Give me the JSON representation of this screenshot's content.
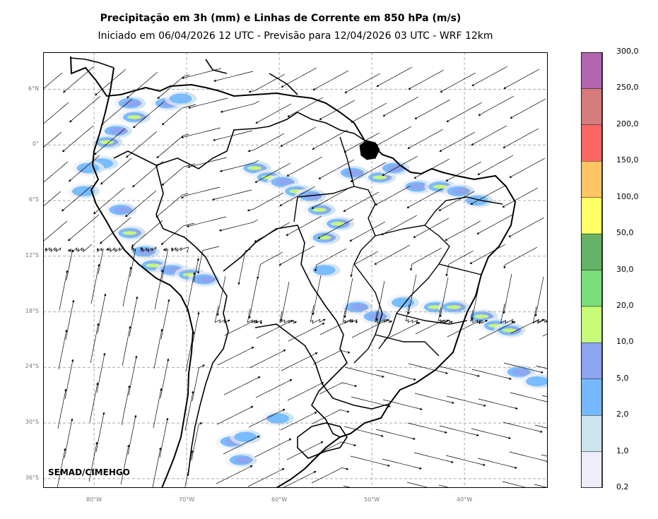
{
  "title": {
    "line1": "Precipitação em 3h (mm) e Linhas de Corrente em 850 hPa (m/s)",
    "line2": "Iniciado em 06/04/2026 12 UTC - Previsão para 12/04/2026 03 UTC - WRF 12km"
  },
  "credit": "SEMAD/CIMEHGO",
  "map": {
    "lon_range": [
      -85.5,
      -31
    ],
    "lat_range": [
      -37,
      10
    ],
    "lat_ticks": [
      {
        "lat": 6,
        "label": "6°N"
      },
      {
        "lat": 0,
        "label": "0°"
      },
      {
        "lat": -6,
        "label": "6°S"
      },
      {
        "lat": -12,
        "label": "12°S"
      },
      {
        "lat": -18,
        "label": "18°S"
      },
      {
        "lat": -24,
        "label": "24°S"
      },
      {
        "lat": -30,
        "label": "30°S"
      },
      {
        "lat": -36,
        "label": "36°S"
      }
    ],
    "lon_ticks": [
      {
        "lon": -80,
        "label": "80°W"
      },
      {
        "lon": -70,
        "label": "70°W"
      },
      {
        "lon": -60,
        "label": "60°W"
      },
      {
        "lon": -50,
        "label": "50°W"
      },
      {
        "lon": -40,
        "label": "40°W"
      }
    ],
    "grid": true,
    "grid_color": "#aaaaaa"
  },
  "colorbar": {
    "labels": [
      "0,2",
      "1,0",
      "2,0",
      "5,0",
      "10,0",
      "20,0",
      "30,0",
      "50,0",
      "100,0",
      "150,0",
      "200,0",
      "250,0",
      "300,0"
    ],
    "colors": [
      "#eeeefb",
      "#cde4ee",
      "#74b9ff",
      "#8da4ee",
      "#c6fb79",
      "#7bdd7b",
      "#66b266",
      "#ffff66",
      "#ffc466",
      "#ff6666",
      "#d57b7b",
      "#b266b2"
    ]
  },
  "precip_cells": [
    {
      "lon": -76.0,
      "lat": 4.5,
      "level": 3
    },
    {
      "lon": -75.5,
      "lat": 3.0,
      "level": 4
    },
    {
      "lon": -77.5,
      "lat": 1.5,
      "level": 3
    },
    {
      "lon": -78.5,
      "lat": 0.3,
      "level": 4
    },
    {
      "lon": -79.0,
      "lat": -2.0,
      "level": 2
    },
    {
      "lon": -72.0,
      "lat": 4.5,
      "level": 3
    },
    {
      "lon": -70.5,
      "lat": 5.0,
      "level": 2
    },
    {
      "lon": -62.5,
      "lat": -2.5,
      "level": 4
    },
    {
      "lon": -61.0,
      "lat": -3.5,
      "level": 5
    },
    {
      "lon": -59.5,
      "lat": -4.0,
      "level": 3
    },
    {
      "lon": -58.0,
      "lat": -5.0,
      "level": 5
    },
    {
      "lon": -56.5,
      "lat": -5.5,
      "level": 3
    },
    {
      "lon": -55.5,
      "lat": -7.0,
      "level": 4
    },
    {
      "lon": -53.5,
      "lat": -8.5,
      "level": 5
    },
    {
      "lon": -55.0,
      "lat": -10.0,
      "level": 4
    },
    {
      "lon": -52.0,
      "lat": -3.0,
      "level": 3
    },
    {
      "lon": -49.0,
      "lat": -3.5,
      "level": 5
    },
    {
      "lon": -47.5,
      "lat": -2.5,
      "level": 3
    },
    {
      "lon": -45.0,
      "lat": -4.5,
      "level": 3
    },
    {
      "lon": -42.5,
      "lat": -4.5,
      "level": 4
    },
    {
      "lon": -40.5,
      "lat": -5.0,
      "level": 3
    },
    {
      "lon": -38.5,
      "lat": -6.0,
      "level": 2
    },
    {
      "lon": -77.0,
      "lat": -7.0,
      "level": 3
    },
    {
      "lon": -76.0,
      "lat": -9.5,
      "level": 4
    },
    {
      "lon": -74.5,
      "lat": -11.5,
      "level": 3
    },
    {
      "lon": -73.5,
      "lat": -13.0,
      "level": 4
    },
    {
      "lon": -71.5,
      "lat": -13.5,
      "level": 3
    },
    {
      "lon": -69.5,
      "lat": -14.0,
      "level": 4
    },
    {
      "lon": -68.0,
      "lat": -14.5,
      "level": 3
    },
    {
      "lon": -55.0,
      "lat": -13.5,
      "level": 2
    },
    {
      "lon": -51.5,
      "lat": -17.5,
      "level": 3
    },
    {
      "lon": -49.5,
      "lat": -18.5,
      "level": 3
    },
    {
      "lon": -46.5,
      "lat": -17.0,
      "level": 2
    },
    {
      "lon": -43.0,
      "lat": -17.5,
      "level": 4
    },
    {
      "lon": -41.0,
      "lat": -17.5,
      "level": 5
    },
    {
      "lon": -38.0,
      "lat": -18.5,
      "level": 4
    },
    {
      "lon": -36.5,
      "lat": -19.5,
      "level": 5
    },
    {
      "lon": -35.0,
      "lat": -20.0,
      "level": 4
    },
    {
      "lon": -34.0,
      "lat": -24.5,
      "level": 3
    },
    {
      "lon": -32.0,
      "lat": -25.5,
      "level": 2
    },
    {
      "lon": -65.0,
      "lat": -32.0,
      "level": 3
    },
    {
      "lon": -63.5,
      "lat": -31.5,
      "level": 2
    },
    {
      "lon": -64.0,
      "lat": -34.0,
      "level": 3
    },
    {
      "lon": -60.0,
      "lat": -29.5,
      "level": 2
    },
    {
      "lon": -81.0,
      "lat": -5.0,
      "level": 2
    },
    {
      "lon": -80.5,
      "lat": -2.5,
      "level": 2
    }
  ]
}
